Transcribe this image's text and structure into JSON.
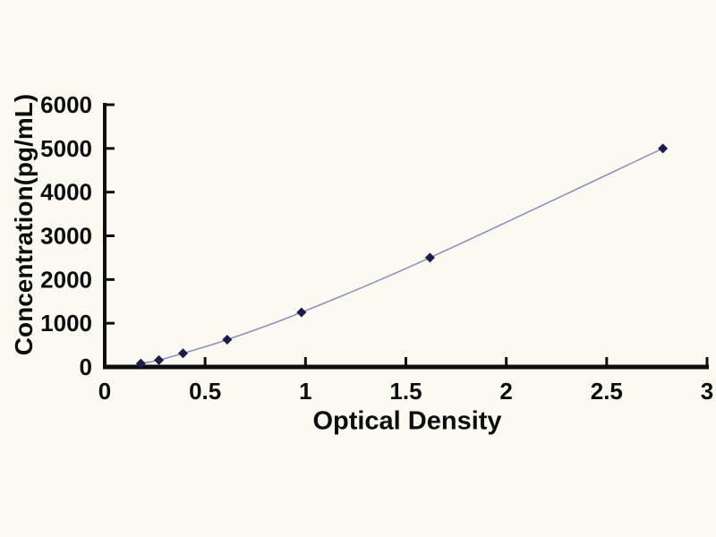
{
  "figure": {
    "background": "#faf9f2",
    "description": "ELISA standard curve plot"
  },
  "chart_data": {
    "type": "line",
    "title": "",
    "xlabel": "Optical Density",
    "ylabel": "Concentration(pg/mL)",
    "xlim": [
      0,
      3
    ],
    "ylim": [
      0,
      6000
    ],
    "xticks": [
      0,
      0.5,
      1,
      1.5,
      2,
      2.5,
      3
    ],
    "xtick_labels": [
      "0",
      "0.5",
      "1",
      "1.5",
      "2",
      "2.5",
      "3"
    ],
    "yticks": [
      0,
      1000,
      2000,
      3000,
      4000,
      5000,
      6000
    ],
    "ytick_labels": [
      "0",
      "1000",
      "2000",
      "3000",
      "4000",
      "5000",
      "6000"
    ],
    "grid": false,
    "legend": "none",
    "series": [
      {
        "name": "standard-curve",
        "marker": "diamond",
        "x": [
          0.18,
          0.27,
          0.39,
          0.61,
          0.98,
          1.62,
          2.78
        ],
        "y": [
          78.1,
          156.2,
          312.5,
          625,
          1250,
          2500,
          5000
        ]
      }
    ],
    "colors": {
      "axis": "#0d0d0d",
      "tick_labels": "#0d0d0d",
      "axis_titles": "#0d0d0d",
      "line": "#8e91bd",
      "marker": "#1c1c4e"
    }
  }
}
